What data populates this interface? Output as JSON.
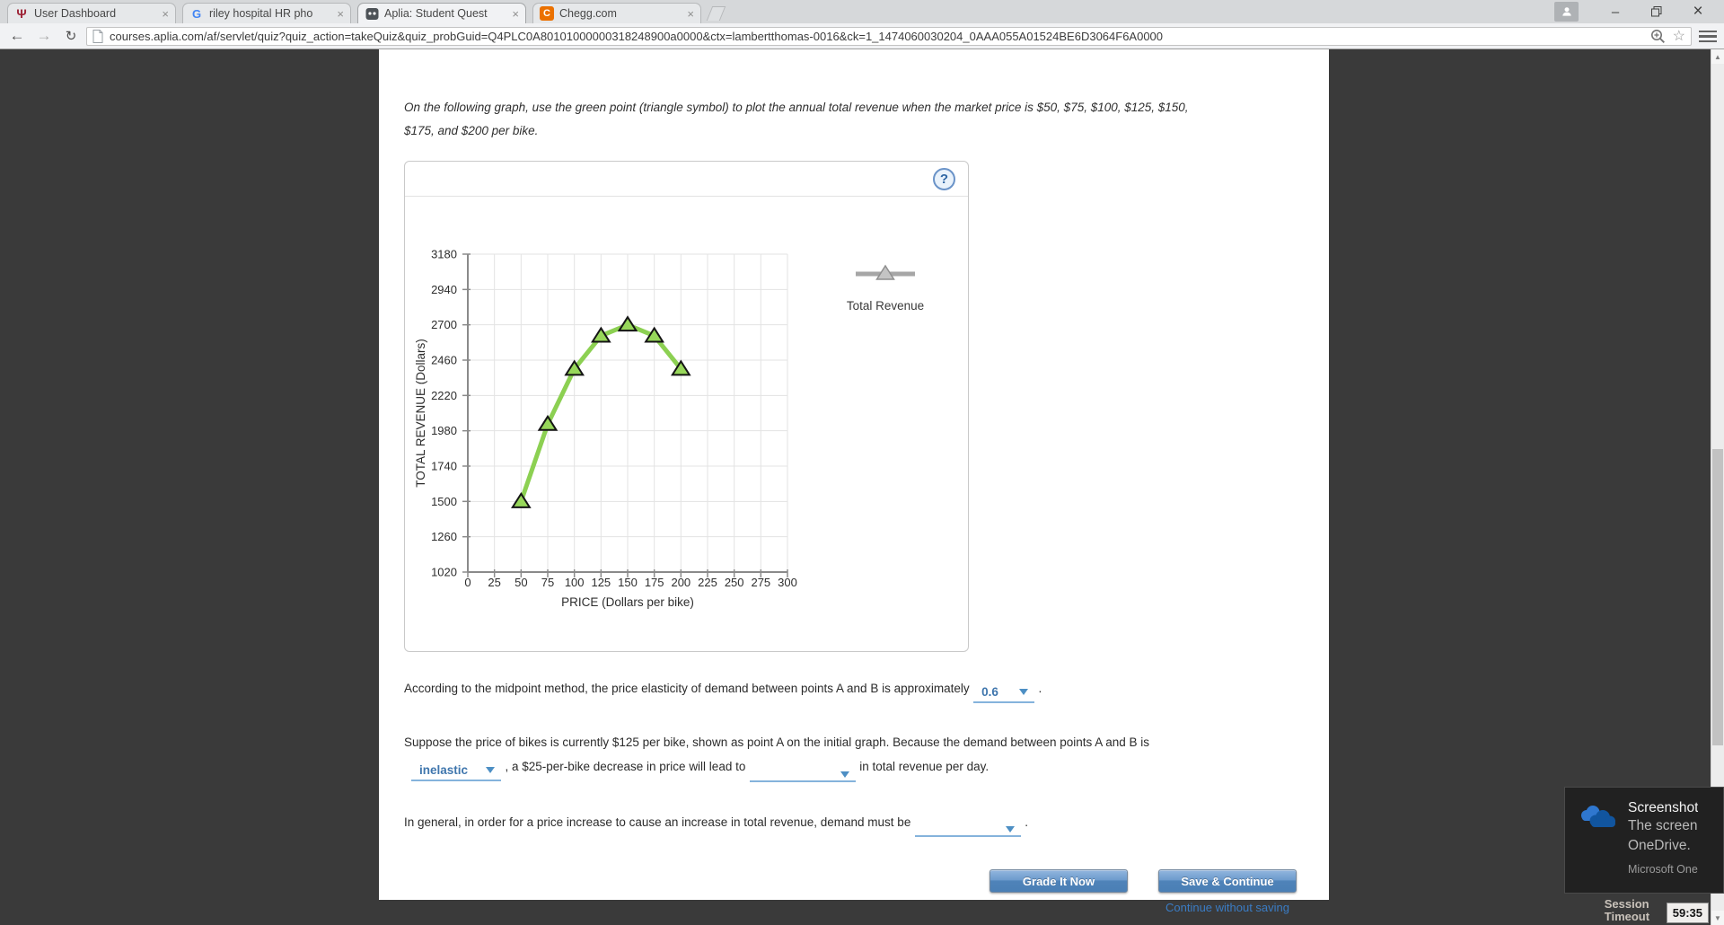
{
  "browser": {
    "tabs": [
      {
        "title": "User Dashboard"
      },
      {
        "title": "riley hospital HR pho"
      },
      {
        "title": "Aplia: Student Quest"
      },
      {
        "title": "Chegg.com"
      }
    ],
    "url": "courses.aplia.com/af/servlet/quiz?quiz_action=takeQuiz&quiz_probGuid=Q4PLC0A80101000000318248900a0000&ctx=lambertthomas-0016&ck=1_1474060030204_0AAA055A01524BE6D3064F6A0000"
  },
  "icons": {
    "back": "←",
    "forward": "→",
    "reload": "↻",
    "bookmark_star": "☆",
    "minimize": "–",
    "close": "×",
    "tab_close": "×",
    "iu_trident": "Ψ",
    "google_g": "G",
    "chegg_c": "C",
    "help": "?",
    "scroll_up": "▲",
    "scroll_down": "▼"
  },
  "quiz": {
    "instruction_line1": "On the following graph, use the green point (triangle symbol) to plot the annual total revenue when the market price is $50, $75, $100, $125, $150,",
    "instruction_line2": "$175, and $200 per bike.",
    "q1": {
      "text": "According to the midpoint method, the price elasticity of demand between points A and B is approximately",
      "answer": "0.6",
      "period": "."
    },
    "q2": {
      "line1": "Suppose the price of bikes is currently $125 per bike, shown as point A on the initial graph. Because the demand between points A and B is",
      "answer1": "inelastic",
      "text2": ", a $25-per-bike decrease in price will lead to",
      "answer2": "",
      "text3": "in total revenue per day."
    },
    "q3": {
      "text": "In general, in order for a price increase to cause an increase in total revenue, demand must be",
      "answer": "",
      "period": "."
    },
    "buttons": {
      "grade": "Grade It Now",
      "save": "Save & Continue",
      "continue_link": "Continue without saving"
    }
  },
  "chart_data": {
    "type": "line",
    "series": [
      {
        "name": "Total Revenue",
        "x": [
          50,
          75,
          100,
          125,
          150,
          175,
          200
        ],
        "y": [
          1500,
          2025,
          2400,
          2625,
          2700,
          2625,
          2400
        ]
      }
    ],
    "xlabel": "PRICE (Dollars per bike)",
    "ylabel": "TOTAL REVENUE (Dollars)",
    "xticks": [
      0,
      25,
      50,
      75,
      100,
      125,
      150,
      175,
      200,
      225,
      250,
      275,
      300
    ],
    "yticks": [
      1020,
      1260,
      1500,
      1740,
      1980,
      2220,
      2460,
      2700,
      2940,
      3180
    ],
    "xlim": [
      0,
      300
    ],
    "ylim": [
      1020,
      3180
    ],
    "grid": true,
    "line_color": "#8CD052",
    "marker": "triangle-up",
    "marker_fill": "#97d75a",
    "marker_stroke": "#151515",
    "legend": {
      "label": "Total Revenue",
      "position": "right",
      "marker_color": "#c4c4c4"
    }
  },
  "notification": {
    "title": "Screenshot",
    "line1": "The screen",
    "line2": "OneDrive.",
    "footer": "Microsoft One"
  },
  "session": {
    "label": "Session Timeout",
    "time": "59:35"
  }
}
